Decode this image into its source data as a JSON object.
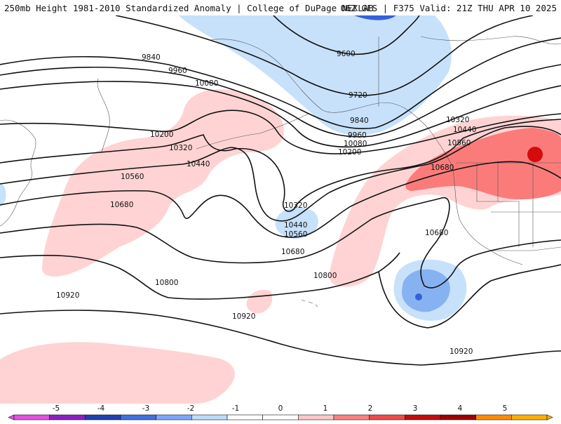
{
  "header": {
    "left_title": "250mb Height 1981-2010 Standardized Anomaly | College of DuPage NEXLAB",
    "right_title": "06Z GFS | F375 Valid: 21Z THU APR 10 2025"
  },
  "contour_labels": {
    "c9600": "9600",
    "c9720": "9720",
    "c9840_w": "9840",
    "c9840_e": "9840",
    "c9960_w": "9960",
    "c9960_e": "9960",
    "c10080_w": "10080",
    "c10080_e": "10080",
    "c10200_w": "10200",
    "c10200_e": "10200",
    "c10320_w": "10320",
    "c10320_m": "10320",
    "c10320_e": "10320",
    "c10440_w": "10440",
    "c10440_m": "10440",
    "c10440_e": "10440",
    "c10560_w": "10560",
    "c10560_m": "10560",
    "c10560_e": "10560",
    "c10680_w": "10680",
    "c10680_m": "10680",
    "c10680_e": "10680",
    "c10680_ne": "10680",
    "c10800_w": "10800",
    "c10800_e": "10800",
    "c10920_w": "10920",
    "c10920_m": "10920",
    "c10920_e": "10920"
  },
  "colorbar": {
    "ticks": [
      "-5",
      "-4",
      "-3",
      "-2",
      "-1",
      "0",
      "1",
      "2",
      "3",
      "4",
      "5"
    ],
    "colors": [
      "#e64fe0",
      "#8c1fc4",
      "#1f3fb3",
      "#3f6fe0",
      "#7fa6ff",
      "#bcdcff",
      "#ffffff",
      "#ffffff",
      "#ffc6c6",
      "#ff8080",
      "#f24a4a",
      "#c70b0b",
      "#a00000",
      "#ff8c00",
      "#ffb000"
    ]
  },
  "colors": {
    "neg_light": "#c7e1fb",
    "neg_mid": "#87b2f2",
    "neg_strong": "#3560dc",
    "pos_light": "#ffd3d3",
    "pos_mid": "#fb7b7b",
    "pos_strong": "#d40c0c"
  }
}
